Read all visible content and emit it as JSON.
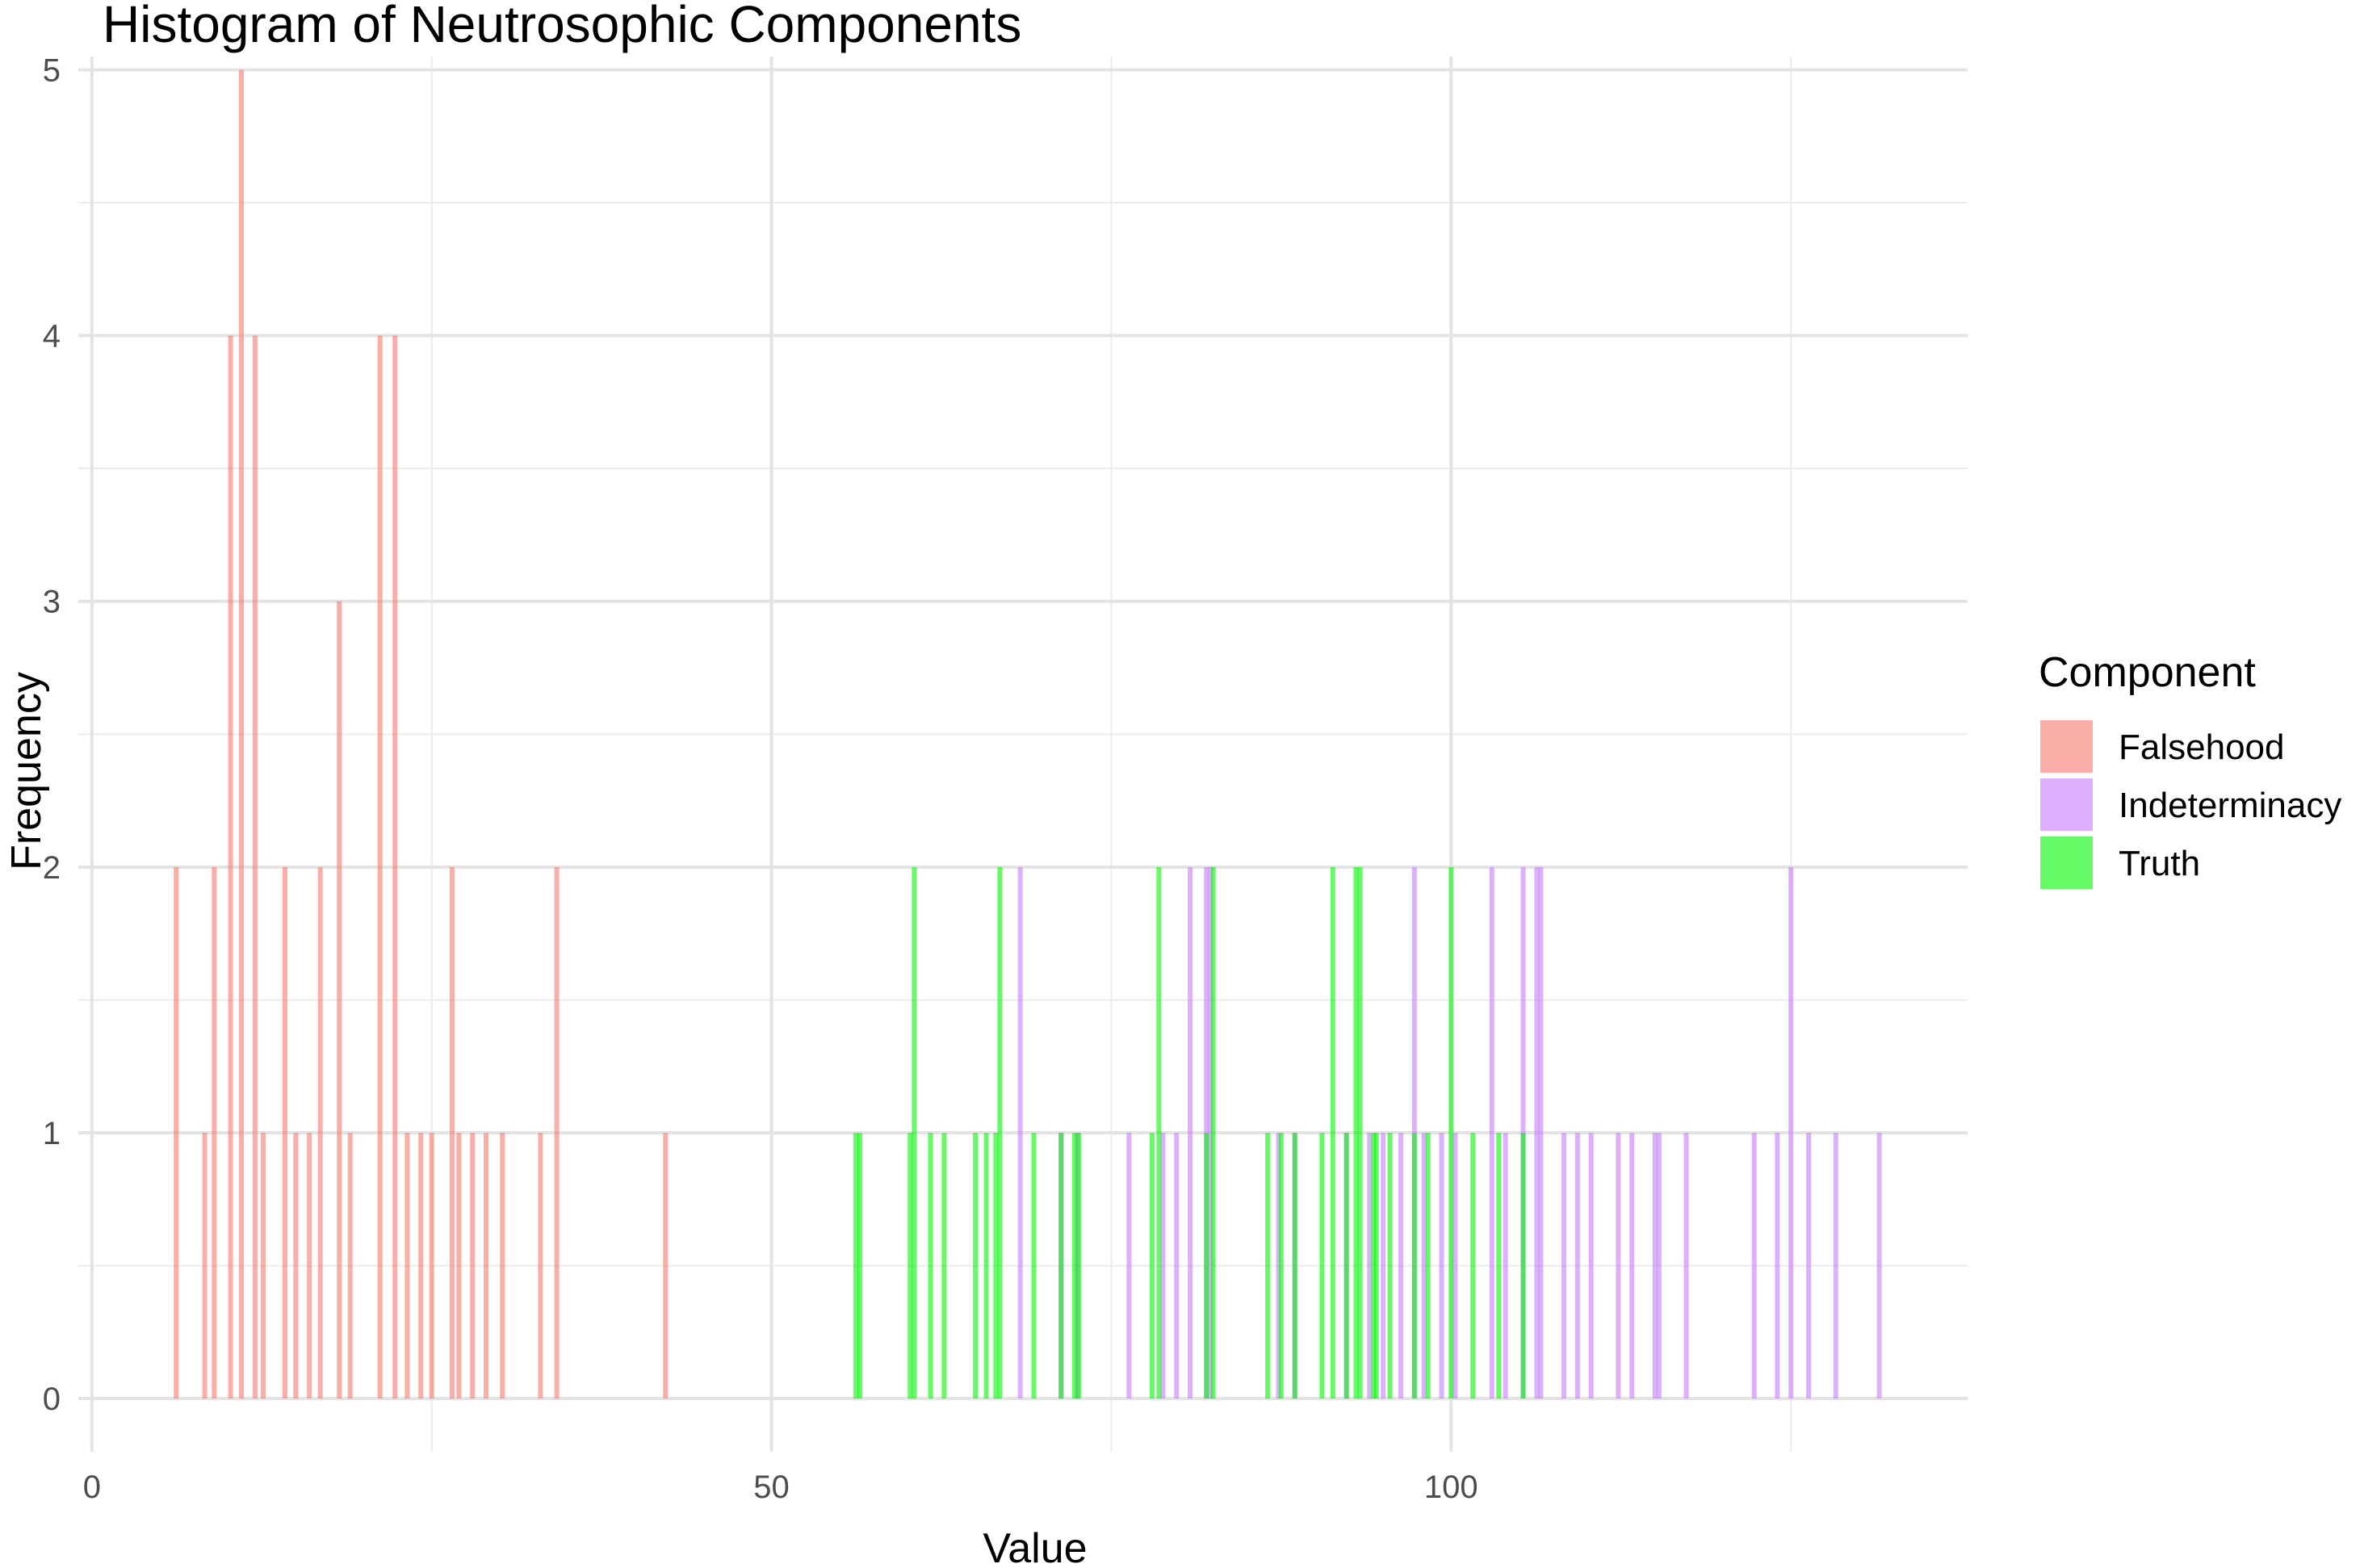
{
  "chart_data": {
    "type": "histogram",
    "title": "Histogram of Neutrosophic Components",
    "xlabel": "Value",
    "ylabel": "Frequency",
    "xlim": [
      -1,
      138
    ],
    "ylim": [
      -0.2,
      5.05
    ],
    "x_ticks": [
      0,
      50,
      100
    ],
    "y_ticks": [
      0,
      1,
      2,
      3,
      4,
      5
    ],
    "x_tick_labels": [
      "0",
      "50",
      "100"
    ],
    "y_tick_labels": [
      "0",
      "1",
      "2",
      "3",
      "4",
      "5"
    ],
    "grid": true,
    "legend": {
      "title": "Component",
      "position": "right",
      "entries": [
        "Falsehood",
        "Indeterminacy",
        "Truth"
      ]
    },
    "bar_opacity": 0.6,
    "series": [
      {
        "name": "Falsehood",
        "color": "#F8766D",
        "bars": [
          [
            6.2,
            2
          ],
          [
            8.3,
            1
          ],
          [
            9.0,
            2
          ],
          [
            10.2,
            4
          ],
          [
            11.0,
            5
          ],
          [
            12.0,
            4
          ],
          [
            12.6,
            1
          ],
          [
            14.2,
            2
          ],
          [
            15.0,
            1
          ],
          [
            16.0,
            1
          ],
          [
            16.8,
            2
          ],
          [
            18.2,
            3
          ],
          [
            19.0,
            1
          ],
          [
            21.2,
            4
          ],
          [
            22.3,
            4
          ],
          [
            23.2,
            1
          ],
          [
            24.2,
            1
          ],
          [
            25.0,
            1
          ],
          [
            26.5,
            2
          ],
          [
            27.0,
            1
          ],
          [
            28.0,
            1
          ],
          [
            29.0,
            1
          ],
          [
            30.2,
            1
          ],
          [
            33.0,
            1
          ],
          [
            34.2,
            2
          ],
          [
            42.2,
            1
          ]
        ]
      },
      {
        "name": "Indeterminacy",
        "color": "#C77CFF",
        "bars": [
          [
            68.3,
            2
          ],
          [
            71.3,
            1
          ],
          [
            72.5,
            1
          ],
          [
            76.3,
            1
          ],
          [
            78.8,
            1
          ],
          [
            79.8,
            1
          ],
          [
            80.8,
            2
          ],
          [
            82.0,
            2
          ],
          [
            82.3,
            2
          ],
          [
            87.3,
            1
          ],
          [
            88.5,
            1
          ],
          [
            92.3,
            1
          ],
          [
            94.0,
            1
          ],
          [
            95.0,
            1
          ],
          [
            96.3,
            1
          ],
          [
            97.3,
            2
          ],
          [
            98.0,
            1
          ],
          [
            99.3,
            1
          ],
          [
            100.3,
            1
          ],
          [
            103.0,
            2
          ],
          [
            104.0,
            1
          ],
          [
            105.3,
            2
          ],
          [
            106.3,
            2
          ],
          [
            106.6,
            2
          ],
          [
            108.3,
            1
          ],
          [
            109.3,
            1
          ],
          [
            110.3,
            1
          ],
          [
            112.3,
            1
          ],
          [
            113.3,
            1
          ],
          [
            115.0,
            1
          ],
          [
            115.3,
            1
          ],
          [
            117.3,
            1
          ],
          [
            122.3,
            1
          ],
          [
            124.0,
            1
          ],
          [
            125.0,
            2
          ],
          [
            126.3,
            1
          ],
          [
            128.3,
            1
          ],
          [
            131.5,
            1
          ]
        ]
      },
      {
        "name": "Truth",
        "color": "#00F800",
        "bars": [
          [
            56.2,
            1
          ],
          [
            56.5,
            1
          ],
          [
            60.2,
            1
          ],
          [
            60.5,
            2
          ],
          [
            61.7,
            1
          ],
          [
            62.7,
            1
          ],
          [
            65.0,
            1
          ],
          [
            65.8,
            1
          ],
          [
            66.5,
            1
          ],
          [
            66.8,
            2
          ],
          [
            69.3,
            1
          ],
          [
            71.3,
            1
          ],
          [
            72.3,
            1
          ],
          [
            72.6,
            1
          ],
          [
            78.0,
            1
          ],
          [
            78.5,
            2
          ],
          [
            82.0,
            1
          ],
          [
            82.5,
            2
          ],
          [
            86.5,
            1
          ],
          [
            87.5,
            1
          ],
          [
            88.5,
            1
          ],
          [
            90.5,
            1
          ],
          [
            91.3,
            2
          ],
          [
            92.3,
            1
          ],
          [
            93.0,
            2
          ],
          [
            93.3,
            2
          ],
          [
            94.3,
            1
          ],
          [
            94.5,
            1
          ],
          [
            95.5,
            1
          ],
          [
            97.3,
            1
          ],
          [
            98.3,
            1
          ],
          [
            100.0,
            2
          ],
          [
            101.6,
            1
          ],
          [
            103.5,
            1
          ],
          [
            105.3,
            1
          ]
        ]
      }
    ]
  }
}
